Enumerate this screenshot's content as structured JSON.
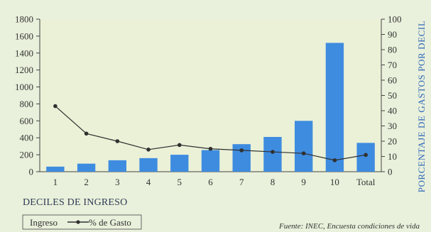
{
  "chart_data": {
    "type": "bar+line",
    "categories": [
      "1",
      "2",
      "3",
      "4",
      "5",
      "6",
      "7",
      "8",
      "9",
      "10",
      "Total"
    ],
    "series": [
      {
        "name": "Ingreso",
        "type": "bar",
        "axis": "left",
        "color": "#3e8ce0",
        "values": [
          60,
          95,
          135,
          160,
          200,
          255,
          325,
          410,
          600,
          1520,
          340
        ]
      },
      {
        "name": "% de Gasto",
        "type": "line",
        "axis": "right",
        "color": "#2f2f2f",
        "values": [
          43,
          25,
          20,
          14.5,
          17.5,
          15,
          14,
          13,
          12,
          7.5,
          11
        ]
      }
    ],
    "xlabel": "DECILES DE INGRESO",
    "ylabel_right": "PORCENTAJE DE GASTOS POR DECIL",
    "ylim_left": [
      0,
      1800
    ],
    "yticks_left": [
      0,
      200,
      400,
      600,
      800,
      1000,
      1200,
      1400,
      1600,
      1800
    ],
    "ylim_right": [
      0,
      100
    ],
    "yticks_right": [
      0,
      10,
      20,
      30,
      40,
      50,
      60,
      70,
      80,
      90,
      100
    ],
    "grid": false,
    "legend": {
      "position": "bottom-left",
      "entries": [
        "Ingreso",
        "% de Gasto"
      ]
    },
    "source": "Fuente: INEC, Encuesta condiciones de vida"
  }
}
